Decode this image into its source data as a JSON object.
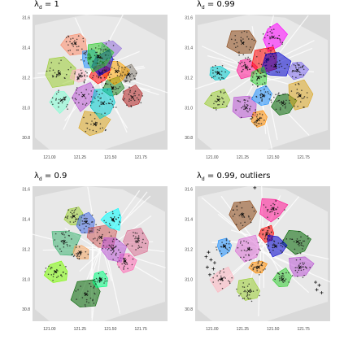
{
  "chart_data": [
    {
      "type": "scatter",
      "title": "λd = 1",
      "title_main": "λ",
      "title_sub": "d",
      "title_rest": " = 1",
      "x_ticks": [
        "121.00",
        "121.25",
        "121.50",
        "121.75"
      ],
      "x_tick_values": [
        121.0,
        121.25,
        121.5,
        121.75
      ],
      "y_ticks": [
        "30.8",
        "31.0",
        "31.2",
        "31.4",
        "31.6"
      ],
      "y_tick_values": [
        30.8,
        31.0,
        31.2,
        31.4,
        31.6
      ],
      "xlim": [
        120.86,
        121.97
      ],
      "ylim": [
        30.72,
        31.62
      ],
      "clusters": [
        {
          "color": "#FF8C69",
          "cx": 121.21,
          "cy": 31.43
        },
        {
          "color": "#9ACD32",
          "cx": 121.08,
          "cy": 31.23
        },
        {
          "color": "#1E90FF",
          "cx": 121.33,
          "cy": 31.33
        },
        {
          "color": "#7FFFD4",
          "cx": 121.1,
          "cy": 31.05
        },
        {
          "color": "#BA55D3",
          "cx": 121.28,
          "cy": 31.08
        },
        {
          "color": "#FFB6C1",
          "cx": 121.25,
          "cy": 31.21
        },
        {
          "color": "#228B22",
          "cx": 121.52,
          "cy": 31.13
        },
        {
          "color": "#B22222",
          "cx": 121.68,
          "cy": 31.07
        },
        {
          "color": "#DAA520",
          "cx": 121.37,
          "cy": 30.89
        },
        {
          "color": "#8B8378",
          "cx": 121.65,
          "cy": 31.22
        },
        {
          "color": "#9370DB",
          "cx": 121.48,
          "cy": 31.38
        },
        {
          "color": "#FFA500",
          "cx": 121.55,
          "cy": 31.24
        },
        {
          "color": "#00CED1",
          "cx": 121.44,
          "cy": 31.03
        },
        {
          "color": "#FF0000",
          "cx": 121.42,
          "cy": 31.23
        },
        {
          "color": "#0000CD",
          "cx": 121.44,
          "cy": 31.3
        },
        {
          "color": "#32CD32",
          "cx": 121.4,
          "cy": 31.34
        }
      ]
    },
    {
      "type": "scatter",
      "title": "λd = 0.99",
      "title_main": "λ",
      "title_sub": "d",
      "title_rest": " = 0.99",
      "x_ticks": [
        "121.00",
        "121.25",
        "121.50",
        "121.75"
      ],
      "x_tick_values": [
        121.0,
        121.25,
        121.5,
        121.75
      ],
      "y_ticks": [
        "30.8",
        "31.0",
        "31.2",
        "31.4",
        "31.6"
      ],
      "y_tick_values": [
        30.8,
        31.0,
        31.2,
        31.4,
        31.6
      ],
      "xlim": [
        120.86,
        121.97
      ],
      "ylim": [
        30.72,
        31.62
      ],
      "clusters": [
        {
          "color": "#FF00FF",
          "cx": 121.5,
          "cy": 31.47
        },
        {
          "color": "#8B4513",
          "cx": 121.25,
          "cy": 31.43
        },
        {
          "color": "#00CED1",
          "cx": 121.05,
          "cy": 31.23
        },
        {
          "color": "#9ACD32",
          "cx": 121.05,
          "cy": 31.05
        },
        {
          "color": "#BA55D3",
          "cx": 121.28,
          "cy": 31.0
        },
        {
          "color": "#FF8C00",
          "cx": 121.38,
          "cy": 30.92
        },
        {
          "color": "#1E90FF",
          "cx": 121.42,
          "cy": 31.08
        },
        {
          "color": "#006400",
          "cx": 121.58,
          "cy": 31.03
        },
        {
          "color": "#DAA520",
          "cx": 121.72,
          "cy": 31.08
        },
        {
          "color": "#7B68EE",
          "cx": 121.7,
          "cy": 31.25
        },
        {
          "color": "#FF1493",
          "cx": 121.28,
          "cy": 31.27
        },
        {
          "color": "#FF0000",
          "cx": 121.45,
          "cy": 31.32
        },
        {
          "color": "#0000CD",
          "cx": 121.52,
          "cy": 31.28
        },
        {
          "color": "#32CD32",
          "cx": 121.38,
          "cy": 31.2
        }
      ]
    },
    {
      "type": "scatter",
      "title": "λd = 0.9",
      "title_main": "λ",
      "title_sub": "d",
      "title_rest": " = 0.9",
      "x_ticks": [
        "121.00",
        "121.25",
        "121.50",
        "121.75"
      ],
      "x_tick_values": [
        121.0,
        121.25,
        121.5,
        121.75
      ],
      "y_ticks": [
        "30.8",
        "31.0",
        "31.2",
        "31.4",
        "31.6"
      ],
      "y_tick_values": [
        30.8,
        31.0,
        31.2,
        31.4,
        31.6
      ],
      "xlim": [
        120.86,
        121.97
      ],
      "ylim": [
        30.72,
        31.62
      ],
      "clusters": [
        {
          "color": "#7CFC00",
          "cx": 121.05,
          "cy": 31.05
        },
        {
          "color": "#3CB371",
          "cx": 121.12,
          "cy": 31.25
        },
        {
          "color": "#9ACD32",
          "cx": 121.2,
          "cy": 31.42
        },
        {
          "color": "#4169E1",
          "cx": 121.3,
          "cy": 31.38
        },
        {
          "color": "#006400",
          "cx": 121.3,
          "cy": 30.9
        },
        {
          "color": "#00FF7F",
          "cx": 121.42,
          "cy": 31.0
        },
        {
          "color": "#FF69B4",
          "cx": 121.62,
          "cy": 31.12
        },
        {
          "color": "#DB7093",
          "cx": 121.72,
          "cy": 31.25
        },
        {
          "color": "#CD5C5C",
          "cx": 121.42,
          "cy": 31.28
        },
        {
          "color": "#F4A460",
          "cx": 121.25,
          "cy": 31.18
        },
        {
          "color": "#00FFFF",
          "cx": 121.52,
          "cy": 31.4
        },
        {
          "color": "#BA55D3",
          "cx": 121.52,
          "cy": 31.2
        }
      ]
    },
    {
      "type": "scatter",
      "title": "λd = 0.99, outliers",
      "title_main": "λ",
      "title_sub": "d",
      "title_rest": " = 0.99, outliers",
      "x_ticks": [
        "121.00",
        "121.25",
        "121.50",
        "121.75"
      ],
      "x_tick_values": [
        121.0,
        121.25,
        121.5,
        121.75
      ],
      "y_ticks": [
        "30.8",
        "31.0",
        "31.2",
        "31.4",
        "31.6"
      ],
      "y_tick_values": [
        30.8,
        31.0,
        31.2,
        31.4,
        31.6
      ],
      "xlim": [
        120.86,
        121.97
      ],
      "ylim": [
        30.72,
        31.62
      ],
      "clusters": [
        {
          "color": "#FF1493",
          "cx": 121.5,
          "cy": 31.47
        },
        {
          "color": "#8B4513",
          "cx": 121.25,
          "cy": 31.43
        },
        {
          "color": "#1E90FF",
          "cx": 121.1,
          "cy": 31.22
        },
        {
          "color": "#FFB6C1",
          "cx": 121.08,
          "cy": 31.0
        },
        {
          "color": "#9ACD32",
          "cx": 121.3,
          "cy": 30.92
        },
        {
          "color": "#FF8C00",
          "cx": 121.38,
          "cy": 31.08
        },
        {
          "color": "#32CD32",
          "cx": 121.58,
          "cy": 31.0
        },
        {
          "color": "#BA55D3",
          "cx": 121.72,
          "cy": 31.08
        },
        {
          "color": "#006400",
          "cx": 121.7,
          "cy": 31.25
        },
        {
          "color": "#FF0000",
          "cx": 121.45,
          "cy": 31.3
        },
        {
          "color": "#0000CD",
          "cx": 121.52,
          "cy": 31.22
        },
        {
          "color": "#DA70D6",
          "cx": 121.3,
          "cy": 31.2
        }
      ],
      "outliers": [
        {
          "x": 120.95,
          "y": 31.15
        },
        {
          "x": 120.99,
          "y": 31.13
        },
        {
          "x": 121.02,
          "y": 31.11
        },
        {
          "x": 120.96,
          "y": 31.08
        },
        {
          "x": 121.01,
          "y": 31.07
        },
        {
          "x": 120.98,
          "y": 31.03
        },
        {
          "x": 121.85,
          "y": 30.98
        },
        {
          "x": 121.88,
          "y": 30.96
        },
        {
          "x": 121.86,
          "y": 30.93
        },
        {
          "x": 121.35,
          "y": 31.61
        },
        {
          "x": 120.97,
          "y": 31.18
        },
        {
          "x": 121.9,
          "y": 30.91
        }
      ]
    }
  ]
}
